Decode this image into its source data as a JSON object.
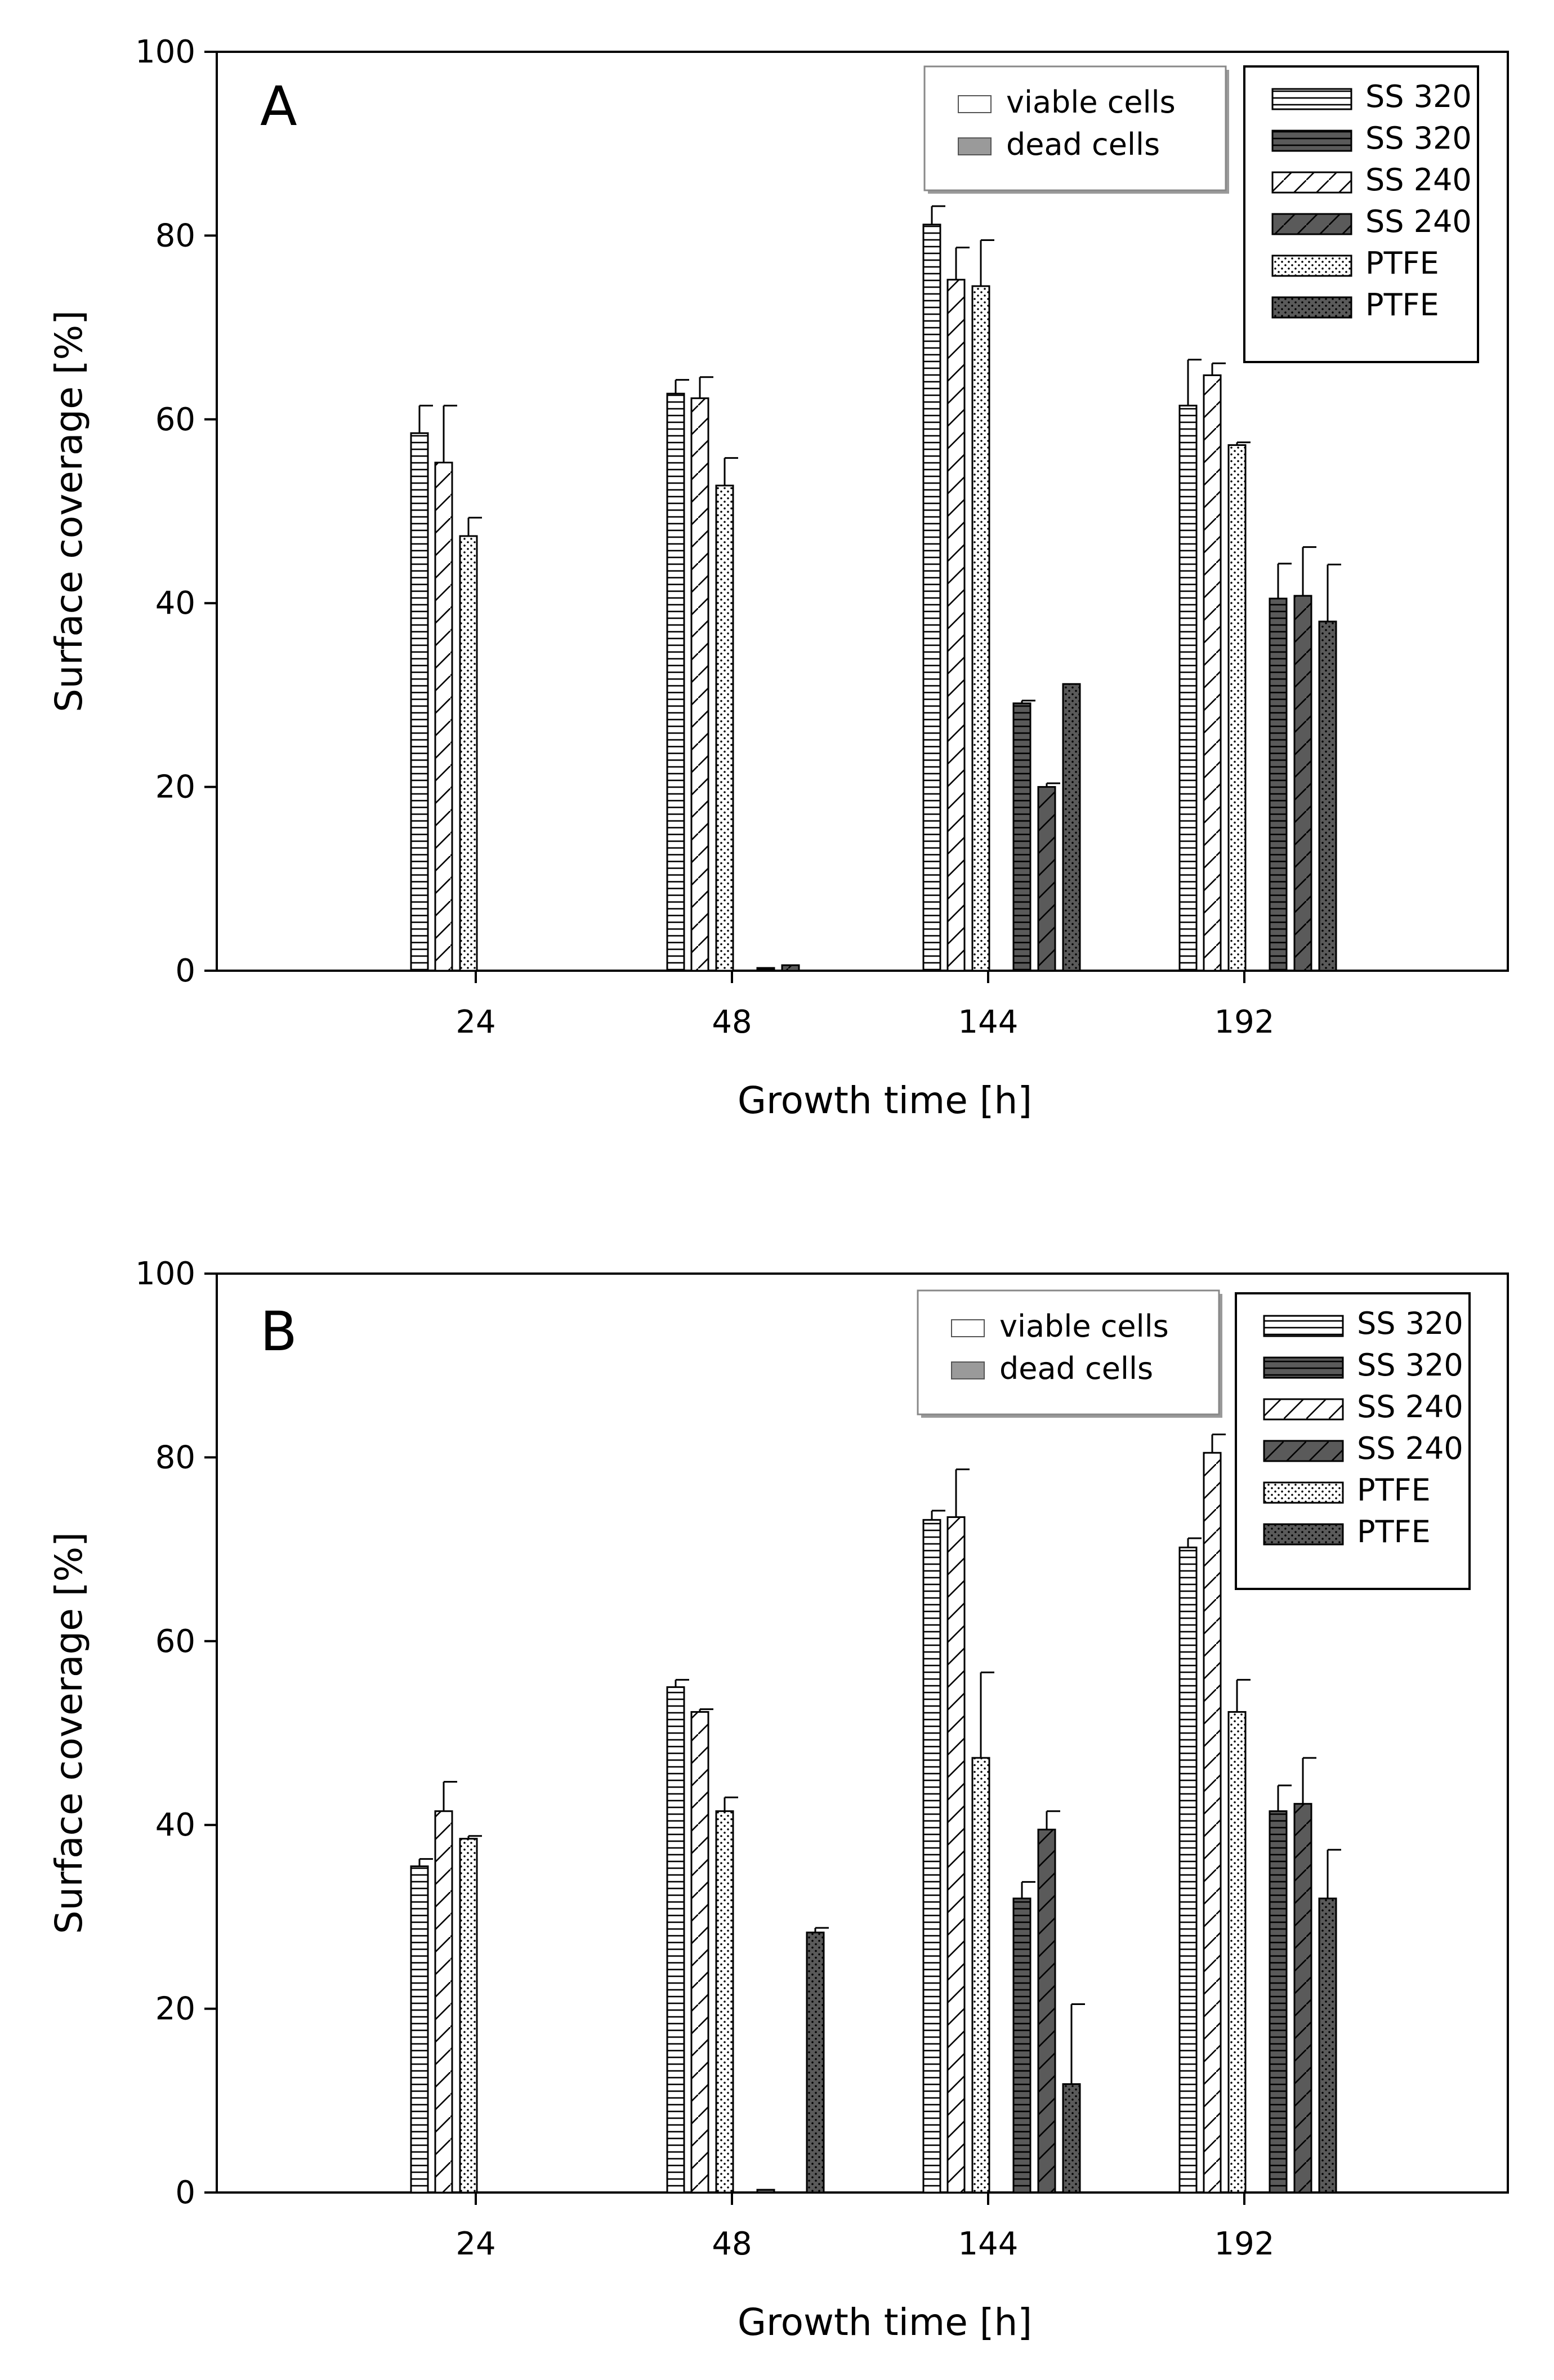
{
  "chart_data": [
    {
      "type": "bar",
      "panel_label": "A",
      "categories": [
        "24",
        "48",
        "144",
        "192"
      ],
      "xlabel": "Growth time [h]",
      "ylabel": "Surface coverage [%]",
      "ylim": [
        0,
        100
      ],
      "yticks": [
        "0",
        "20",
        "40",
        "60",
        "80",
        "100"
      ],
      "grid": false,
      "legend_cells": [
        "viable cells",
        "dead cells"
      ],
      "legend_materials": [
        "SS 320",
        "SS 320",
        "SS 240",
        "SS 240",
        "PTFE",
        "PTFE"
      ],
      "series": [
        {
          "name": "SS 320",
          "state": "viable",
          "pattern": "hlines",
          "fill": "#ffffff",
          "values": [
            58.5,
            62.8,
            81.2,
            61.5
          ],
          "errors": [
            3.0,
            1.5,
            2.0,
            5.0
          ]
        },
        {
          "name": "SS 240",
          "state": "viable",
          "pattern": "diag",
          "fill": "#ffffff",
          "values": [
            55.3,
            62.3,
            75.2,
            64.8
          ],
          "errors": [
            6.2,
            2.3,
            3.5,
            1.3
          ]
        },
        {
          "name": "PTFE",
          "state": "viable",
          "pattern": "dots",
          "fill": "#ffffff",
          "values": [
            47.3,
            52.8,
            74.5,
            57.2
          ],
          "errors": [
            2.0,
            3.0,
            5.0,
            0.3
          ]
        },
        {
          "name": "SS 320",
          "state": "dead",
          "pattern": "hlines",
          "fill": "#5a5a5a",
          "values": [
            0,
            0.3,
            29.1,
            40.5
          ],
          "errors": [
            0,
            0,
            0.3,
            3.8
          ]
        },
        {
          "name": "SS 240",
          "state": "dead",
          "pattern": "diag",
          "fill": "#5a5a5a",
          "values": [
            0,
            0.6,
            20.0,
            40.8
          ],
          "errors": [
            0,
            0,
            0.4,
            5.3
          ]
        },
        {
          "name": "PTFE",
          "state": "dead",
          "pattern": "dots",
          "fill": "#5a5a5a",
          "values": [
            0,
            0,
            31.2,
            38.0
          ],
          "errors": [
            0,
            0,
            0,
            6.2
          ]
        }
      ]
    },
    {
      "type": "bar",
      "panel_label": "B",
      "categories": [
        "24",
        "48",
        "144",
        "192"
      ],
      "xlabel": "Growth time [h]",
      "ylabel": "Surface coverage [%]",
      "ylim": [
        0,
        100
      ],
      "yticks": [
        "0",
        "20",
        "40",
        "60",
        "80",
        "100"
      ],
      "grid": false,
      "legend_cells": [
        "viable cells",
        "dead cells"
      ],
      "legend_materials": [
        "SS 320",
        "SS 320",
        "SS 240",
        "SS 240",
        "PTFE",
        "PTFE"
      ],
      "series": [
        {
          "name": "SS 320",
          "state": "viable",
          "pattern": "hlines",
          "fill": "#ffffff",
          "values": [
            35.5,
            55.0,
            73.2,
            70.2
          ],
          "errors": [
            0.8,
            0.8,
            1.0,
            1.0
          ]
        },
        {
          "name": "SS 240",
          "state": "viable",
          "pattern": "diag",
          "fill": "#ffffff",
          "values": [
            41.5,
            52.3,
            73.5,
            80.5
          ],
          "errors": [
            3.2,
            0.3,
            5.2,
            2.0
          ]
        },
        {
          "name": "PTFE",
          "state": "viable",
          "pattern": "dots",
          "fill": "#ffffff",
          "values": [
            38.5,
            41.5,
            47.3,
            52.3
          ],
          "errors": [
            0.3,
            1.5,
            9.3,
            3.5
          ]
        },
        {
          "name": "SS 320",
          "state": "dead",
          "pattern": "hlines",
          "fill": "#5a5a5a",
          "values": [
            0,
            0.3,
            32.0,
            41.5
          ],
          "errors": [
            0,
            0,
            1.8,
            2.8
          ]
        },
        {
          "name": "SS 240",
          "state": "dead",
          "pattern": "diag",
          "fill": "#5a5a5a",
          "values": [
            0,
            0,
            39.5,
            42.3
          ],
          "errors": [
            0,
            0,
            2.0,
            5.0
          ]
        },
        {
          "name": "PTFE",
          "state": "dead",
          "pattern": "dots",
          "fill": "#5a5a5a",
          "values": [
            0,
            28.3,
            11.8,
            32.0
          ],
          "errors": [
            0,
            0.5,
            8.7,
            5.3
          ]
        }
      ]
    }
  ]
}
